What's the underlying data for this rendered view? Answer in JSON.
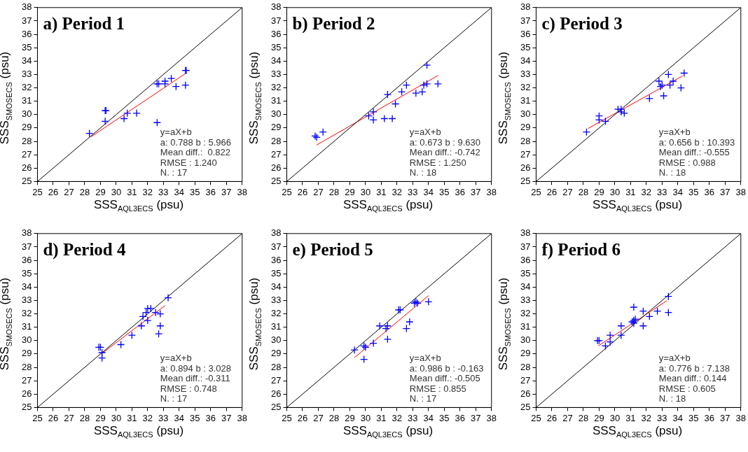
{
  "chart_data": [
    {
      "type": "scatter",
      "title": "a) Period 1",
      "xlabel": "SSS$_{AQL3ECS}$ (psu)",
      "ylabel": "SSS$_{SMOSECS}$ (psu)",
      "xlim": [
        25,
        38
      ],
      "ylim": [
        25,
        38
      ],
      "xticks": [
        25,
        26,
        27,
        28,
        29,
        30,
        31,
        32,
        33,
        34,
        35,
        36,
        37,
        38
      ],
      "yticks": [
        25,
        26,
        27,
        28,
        29,
        30,
        31,
        32,
        33,
        34,
        35,
        36,
        37,
        38
      ],
      "annotations": [
        "y=aX+b",
        "a: 0.788 b : 5.966",
        "Mean diff.:  0.822",
        "RMSE : 1.240",
        "N. : 17"
      ],
      "series": [
        {
          "type": "scatter",
          "marker": "cross",
          "color": "#0000ff",
          "x": [
            28.3,
            29.3,
            29.35,
            29.3,
            30.5,
            30.7,
            31.3,
            32.6,
            32.6,
            32.7,
            33.1,
            33.1,
            33.5,
            33.8,
            34.4,
            34.45,
            34.4
          ],
          "values": [
            28.6,
            30.3,
            30.3,
            29.5,
            29.7,
            30.1,
            30.1,
            29.4,
            32.3,
            32.3,
            32.5,
            32.3,
            32.7,
            32.1,
            33.3,
            33.3,
            32.2
          ]
        },
        {
          "type": "line",
          "marker": "none",
          "color": "#000000",
          "x": [
            25,
            38
          ],
          "values": [
            25,
            38
          ]
        },
        {
          "type": "line",
          "marker": "none",
          "color": "#ff0000",
          "x": [
            28.4,
            34.4
          ],
          "values": [
            28.34,
            33.07
          ]
        }
      ]
    },
    {
      "type": "scatter",
      "title": "b) Period 2",
      "xlabel": "SSS$_{AQL3ECS}$ (psu)",
      "ylabel": "SSS$_{SMOSECS}$ (psu)",
      "xlim": [
        25,
        38
      ],
      "ylim": [
        25,
        38
      ],
      "xticks": [
        25,
        26,
        27,
        28,
        29,
        30,
        31,
        32,
        33,
        34,
        35,
        36,
        37,
        38
      ],
      "yticks": [
        25,
        26,
        27,
        28,
        29,
        30,
        31,
        32,
        33,
        34,
        35,
        36,
        37,
        38
      ],
      "annotations": [
        "y=aX+b",
        "a: 0.673 b : 9.630",
        "Mean diff.: -0.742",
        "RMSE : 1.250",
        "N. : 18"
      ],
      "series": [
        {
          "type": "scatter",
          "marker": "cross",
          "color": "#0000ff",
          "x": [
            26.8,
            27.3,
            26.9,
            30.2,
            30.5,
            30.5,
            31.2,
            31.7,
            31.4,
            31.9,
            32.3,
            32.6,
            33.2,
            33.6,
            33.7,
            33.9,
            33.9,
            34.6
          ],
          "values": [
            28.4,
            28.7,
            28.3,
            29.9,
            30.2,
            29.6,
            29.7,
            29.7,
            31.5,
            30.8,
            31.7,
            32.2,
            31.6,
            31.7,
            32.2,
            32.3,
            33.7,
            32.3
          ]
        },
        {
          "type": "line",
          "marker": "none",
          "color": "#000000",
          "x": [
            25,
            38
          ],
          "values": [
            25,
            38
          ]
        },
        {
          "type": "line",
          "marker": "none",
          "color": "#ff0000",
          "x": [
            26.9,
            34.6
          ],
          "values": [
            27.73,
            32.92
          ]
        }
      ]
    },
    {
      "type": "scatter",
      "title": "c) Period 3",
      "xlabel": "SSS$_{AQL3ECS}$ (psu)",
      "ylabel": "SSS$_{SMOSECS}$ (psu)",
      "xlim": [
        25,
        38
      ],
      "ylim": [
        25,
        38
      ],
      "xticks": [
        25,
        26,
        27,
        28,
        29,
        30,
        31,
        32,
        33,
        34,
        35,
        36,
        37,
        38
      ],
      "yticks": [
        25,
        26,
        27,
        28,
        29,
        30,
        31,
        32,
        33,
        34,
        35,
        36,
        37,
        38
      ],
      "annotations": [
        "y=aX+b",
        "a: 0.656 b : 10.393",
        "Mean diff.: -0.555",
        "RMSE : 0.988",
        "N. : 18"
      ],
      "series": [
        {
          "type": "scatter",
          "marker": "cross",
          "color": "#0000ff",
          "x": [
            28.2,
            29.0,
            29.0,
            29.4,
            30.2,
            30.4,
            30.4,
            30.6,
            32.2,
            32.8,
            32.9,
            33.0,
            33.1,
            33.4,
            33.5,
            33.7,
            34.2,
            34.4
          ],
          "values": [
            28.7,
            29.9,
            29.6,
            29.5,
            30.4,
            30.4,
            30.2,
            30.1,
            31.2,
            32.5,
            32.1,
            32.2,
            31.4,
            33.0,
            32.2,
            32.5,
            32.0,
            33.1
          ]
        },
        {
          "type": "line",
          "marker": "none",
          "color": "#000000",
          "x": [
            25,
            38
          ],
          "values": [
            25,
            38
          ]
        },
        {
          "type": "line",
          "marker": "none",
          "color": "#ff0000",
          "x": [
            28.3,
            34.3
          ],
          "values": [
            28.96,
            32.89
          ]
        }
      ]
    },
    {
      "type": "scatter",
      "title": "d) Period 4",
      "xlabel": "SSS$_{AQL3ECS}$ (psu)",
      "ylabel": "SSS$_{SMOSECS}$ (psu)",
      "xlim": [
        25,
        38
      ],
      "ylim": [
        25,
        38
      ],
      "xticks": [
        25,
        26,
        27,
        28,
        29,
        30,
        31,
        32,
        33,
        34,
        35,
        36,
        37,
        38
      ],
      "yticks": [
        25,
        26,
        27,
        28,
        29,
        30,
        31,
        32,
        33,
        34,
        35,
        36,
        37,
        38
      ],
      "annotations": [
        "y=aX+b",
        "a: 0.894 b : 3.028",
        "Mean diff.: -0.311",
        "RMSE : 0.748",
        "N. : 17"
      ],
      "series": [
        {
          "type": "scatter",
          "marker": "cross",
          "color": "#0000ff",
          "x": [
            28.9,
            29.0,
            29.1,
            29.1,
            30.3,
            31.0,
            31.6,
            31.7,
            31.9,
            32.0,
            32.0,
            32.2,
            32.5,
            32.8,
            32.8,
            32.7,
            33.3
          ],
          "values": [
            29.5,
            29.5,
            29.1,
            28.7,
            29.7,
            30.4,
            31.1,
            31.8,
            32.1,
            31.5,
            32.4,
            32.4,
            32.1,
            32.0,
            31.1,
            30.5,
            33.2
          ]
        },
        {
          "type": "line",
          "marker": "none",
          "color": "#000000",
          "x": [
            25,
            38
          ],
          "values": [
            25,
            38
          ]
        },
        {
          "type": "line",
          "marker": "none",
          "color": "#ff0000",
          "x": [
            29.1,
            33.1
          ],
          "values": [
            29.04,
            32.62
          ]
        }
      ]
    },
    {
      "type": "scatter",
      "title": "e) Period 5",
      "xlabel": "SSS$_{AQL3ECS}$ (psu)",
      "ylabel": "SSS$_{SMOSECS}$ (psu)",
      "xlim": [
        25,
        38
      ],
      "ylim": [
        25,
        38
      ],
      "xticks": [
        25,
        26,
        27,
        28,
        29,
        30,
        31,
        32,
        33,
        34,
        35,
        36,
        37,
        38
      ],
      "yticks": [
        25,
        26,
        27,
        28,
        29,
        30,
        31,
        32,
        33,
        34,
        35,
        36,
        37,
        38
      ],
      "annotations": [
        "y=aX+b",
        "a: 0.986 b : -0.163",
        "Mean diff.: -0.505",
        "RMSE : 0.855",
        "N. : 17"
      ],
      "series": [
        {
          "type": "scatter",
          "marker": "cross",
          "color": "#0000ff",
          "x": [
            29.3,
            29.9,
            30.0,
            29.9,
            30.5,
            30.9,
            31.3,
            31.4,
            31.4,
            32.1,
            32.2,
            32.6,
            32.8,
            33.2,
            33.3,
            33.1,
            34.0
          ],
          "values": [
            29.3,
            29.6,
            29.5,
            28.6,
            29.8,
            31.1,
            30.9,
            31.1,
            30.1,
            32.3,
            32.3,
            30.9,
            31.4,
            32.9,
            32.8,
            32.8,
            32.9
          ]
        },
        {
          "type": "line",
          "marker": "none",
          "color": "#000000",
          "x": [
            25,
            38
          ],
          "values": [
            25,
            38
          ]
        },
        {
          "type": "line",
          "marker": "none",
          "color": "#ff0000",
          "x": [
            29.3,
            34.0
          ],
          "values": [
            28.73,
            33.36
          ]
        }
      ]
    },
    {
      "type": "scatter",
      "title": "f) Period 6",
      "xlabel": "SSS$_{AQL3ECS}$ (psu)",
      "ylabel": "SSS$_{SMOSECS}$ (psu)",
      "xlim": [
        25,
        38
      ],
      "ylim": [
        25,
        38
      ],
      "xticks": [
        25,
        26,
        27,
        28,
        29,
        30,
        31,
        32,
        33,
        34,
        35,
        36,
        37,
        38
      ],
      "yticks": [
        25,
        26,
        27,
        28,
        29,
        30,
        31,
        32,
        33,
        34,
        35,
        36,
        37,
        38
      ],
      "annotations": [
        "y=aX+b",
        "a: 0.776 b : 7.138",
        "Mean diff.: 0.144",
        "RMSE : 0.605",
        "N. : 18"
      ],
      "series": [
        {
          "type": "scatter",
          "marker": "cross",
          "color": "#0000ff",
          "x": [
            28.9,
            29.0,
            29.4,
            29.7,
            29.7,
            30.4,
            30.4,
            31.2,
            31.2,
            31.3,
            31.2,
            31.8,
            31.8,
            32.2,
            32.7,
            33.4,
            33.4,
            31.1
          ],
          "values": [
            30.0,
            30.0,
            29.6,
            30.4,
            29.9,
            31.1,
            30.4,
            32.5,
            31.5,
            31.6,
            31.3,
            32.2,
            31.1,
            31.8,
            32.2,
            33.3,
            32.1,
            31.4
          ]
        },
        {
          "type": "line",
          "marker": "none",
          "color": "#000000",
          "x": [
            25,
            38
          ],
          "values": [
            25,
            38
          ]
        },
        {
          "type": "line",
          "marker": "none",
          "color": "#ff0000",
          "x": [
            28.95,
            33.3
          ],
          "values": [
            29.6,
            32.98
          ]
        }
      ]
    }
  ]
}
